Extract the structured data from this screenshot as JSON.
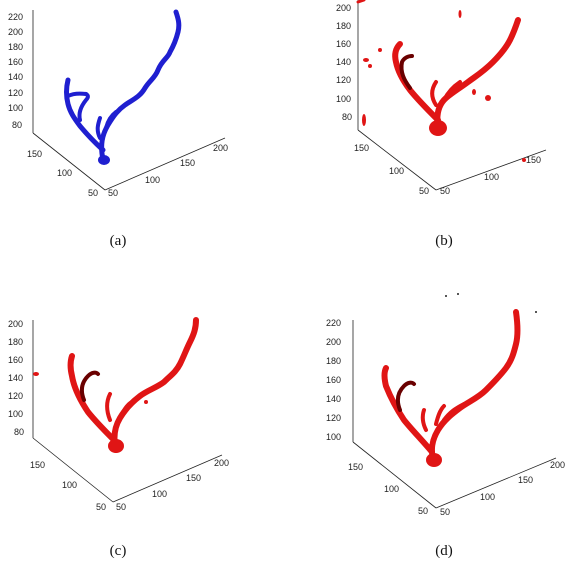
{
  "figure": {
    "panels": [
      {
        "id": "a",
        "caption": "(a)",
        "vessel_color": "#1f1fd0",
        "vessel_edge": "#0a0a7a",
        "z_ticks": [
          "220",
          "200",
          "180",
          "160",
          "140",
          "120",
          "100",
          "80"
        ],
        "left_ticks": [
          "150",
          "100",
          "50"
        ],
        "right_ticks": [
          "50",
          "100",
          "150",
          "200"
        ]
      },
      {
        "id": "b",
        "caption": "(b)",
        "vessel_color": "#e01515",
        "vessel_edge": "#6a0000",
        "z_ticks": [
          "200",
          "180",
          "160",
          "140",
          "120",
          "100",
          "80"
        ],
        "left_ticks": [
          "150",
          "100",
          "50"
        ],
        "right_ticks": [
          "50",
          "100",
          "150"
        ]
      },
      {
        "id": "c",
        "caption": "(c)",
        "vessel_color": "#e01515",
        "vessel_edge": "#6a0000",
        "z_ticks": [
          "200",
          "180",
          "160",
          "140",
          "120",
          "100",
          "80"
        ],
        "left_ticks": [
          "150",
          "100",
          "50"
        ],
        "right_ticks": [
          "50",
          "100",
          "150",
          "200"
        ]
      },
      {
        "id": "d",
        "caption": "(d)",
        "vessel_color": "#e01515",
        "vessel_edge": "#6a0000",
        "z_ticks": [
          "220",
          "200",
          "180",
          "160",
          "140",
          "120",
          "100"
        ],
        "left_ticks": [
          "150",
          "100",
          "50"
        ],
        "right_ticks": [
          "50",
          "100",
          "150",
          "200"
        ]
      }
    ]
  }
}
